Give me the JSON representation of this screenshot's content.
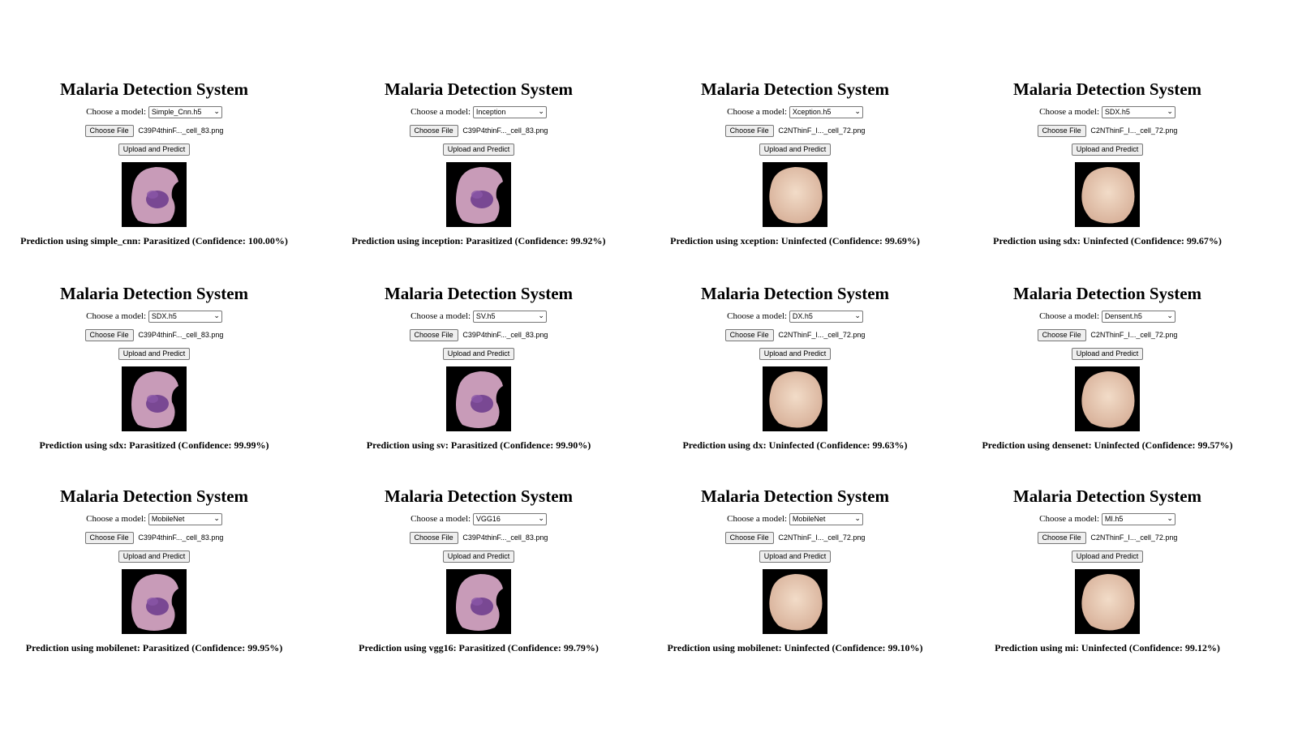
{
  "app": {
    "title": "Malaria Detection System",
    "model_label": "Choose a model:",
    "choose_file_label": "Choose File",
    "upload_label": "Upload and Predict"
  },
  "panels": [
    {
      "model": "Simple_Cnn.h5",
      "file": "C39P4thinF..._cell_83.png",
      "cell": "parasitized",
      "prediction": "Prediction using simple_cnn: Parasitized (Confidence: 100.00%)"
    },
    {
      "model": "Inception",
      "file": "C39P4thinF..._cell_83.png",
      "cell": "parasitized",
      "prediction": "Prediction using inception: Parasitized (Confidence: 99.92%)"
    },
    {
      "model": "Xception.h5",
      "file": "C2NThinF_I..._cell_72.png",
      "cell": "uninfected",
      "prediction": "Prediction using xception: Uninfected (Confidence: 99.69%)"
    },
    {
      "model": "SDX.h5",
      "file": "C2NThinF_I..._cell_72.png",
      "cell": "uninfected",
      "prediction": "Prediction using sdx: Uninfected (Confidence: 99.67%)"
    },
    {
      "model": "SDX.h5",
      "file": "C39P4thinF..._cell_83.png",
      "cell": "parasitized",
      "prediction": "Prediction using sdx: Parasitized (Confidence: 99.99%)"
    },
    {
      "model": "SV.h5",
      "file": "C39P4thinF..._cell_83.png",
      "cell": "parasitized",
      "prediction": "Prediction using sv: Parasitized (Confidence: 99.90%)"
    },
    {
      "model": "DX.h5",
      "file": "C2NThinF_I..._cell_72.png",
      "cell": "uninfected",
      "prediction": "Prediction using dx: Uninfected (Confidence: 99.63%)"
    },
    {
      "model": "Densent.h5",
      "file": "C2NThinF_I..._cell_72.png",
      "cell": "uninfected",
      "prediction": "Prediction using densenet: Uninfected (Confidence: 99.57%)"
    },
    {
      "model": "MobileNet",
      "file": "C39P4thinF..._cell_83.png",
      "cell": "parasitized",
      "prediction": "Prediction using mobilenet: Parasitized (Confidence: 99.95%)"
    },
    {
      "model": "VGG16",
      "file": "C39P4thinF..._cell_83.png",
      "cell": "parasitized",
      "prediction": "Prediction using vgg16: Parasitized (Confidence: 99.79%)"
    },
    {
      "model": "MobileNet",
      "file": "C2NThinF_I..._cell_72.png",
      "cell": "uninfected",
      "prediction": "Prediction using mobilenet: Uninfected (Confidence: 99.10%)"
    },
    {
      "model": "MI.h5",
      "file": "C2NThinF_I..._cell_72.png",
      "cell": "uninfected",
      "prediction": "Prediction using mi: Uninfected (Confidence: 99.12%)"
    }
  ],
  "colors": {
    "parasitized_cell": "#c89bb8",
    "parasite_stain": "#6b3a8c",
    "uninfected_cell": "#e6c9b4",
    "image_background": "#000000"
  },
  "icons": {
    "dropdown": "chevron-down-icon"
  }
}
